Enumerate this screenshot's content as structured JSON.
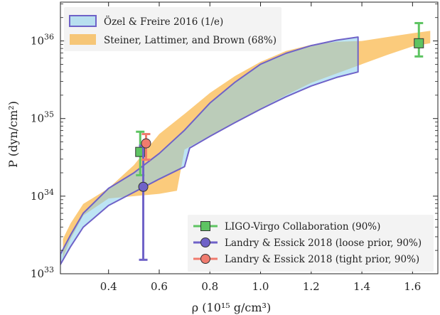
{
  "chart_data": {
    "type": "area",
    "xlabel": "ρ (10¹⁵ g/cm³)",
    "ylabel": "P (dyn/cm²)",
    "xlim": [
      0.21,
      1.7
    ],
    "ylim_log10": [
      33,
      36.5
    ],
    "yscale": "log",
    "x_ticks": [
      "0.4",
      "0.6",
      "0.8",
      "1.0",
      "1.2",
      "1.4",
      "1.6"
    ],
    "y_ticks": [
      {
        "base": "10",
        "exp": "33"
      },
      {
        "base": "10",
        "exp": "34"
      },
      {
        "base": "10",
        "exp": "35"
      },
      {
        "base": "10",
        "exp": "36"
      }
    ],
    "grid": false,
    "bands": [
      {
        "name": "Steiner, Lattimer, and Brown (68%)",
        "color": "#f9a825",
        "lower": [
          [
            0.22,
            33.2
          ],
          [
            0.25,
            33.45
          ],
          [
            0.3,
            33.75
          ],
          [
            0.4,
            33.97
          ],
          [
            0.5,
            34.0
          ],
          [
            0.6,
            34.03
          ],
          [
            0.67,
            34.07
          ],
          [
            0.7,
            34.6
          ],
          [
            0.8,
            34.78
          ],
          [
            0.9,
            34.95
          ],
          [
            1.0,
            35.13
          ],
          [
            1.1,
            35.3
          ],
          [
            1.2,
            35.46
          ],
          [
            1.3,
            35.58
          ],
          [
            1.4,
            35.7
          ],
          [
            1.5,
            35.82
          ],
          [
            1.6,
            35.93
          ],
          [
            1.67,
            35.97
          ]
        ],
        "upper": [
          [
            0.22,
            33.45
          ],
          [
            0.25,
            33.65
          ],
          [
            0.3,
            33.9
          ],
          [
            0.4,
            34.1
          ],
          [
            0.5,
            34.4
          ],
          [
            0.6,
            34.8
          ],
          [
            0.7,
            35.06
          ],
          [
            0.8,
            35.33
          ],
          [
            0.9,
            35.55
          ],
          [
            1.0,
            35.73
          ],
          [
            1.1,
            35.87
          ],
          [
            1.2,
            35.95
          ],
          [
            1.3,
            35.99
          ],
          [
            1.4,
            36.0
          ],
          [
            1.5,
            36.05
          ],
          [
            1.6,
            36.1
          ],
          [
            1.67,
            36.13
          ]
        ]
      },
      {
        "name": "Özel & Freire 2016 (1/e)",
        "color": "#87ceeb",
        "edge_color": "#6f62c8",
        "lower": [
          [
            0.21,
            33.12
          ],
          [
            0.25,
            33.35
          ],
          [
            0.3,
            33.6
          ],
          [
            0.4,
            33.88
          ],
          [
            0.5,
            34.05
          ],
          [
            0.6,
            34.22
          ],
          [
            0.7,
            34.38
          ],
          [
            0.72,
            34.62
          ],
          [
            0.8,
            34.77
          ],
          [
            0.9,
            34.95
          ],
          [
            1.0,
            35.12
          ],
          [
            1.1,
            35.28
          ],
          [
            1.2,
            35.42
          ],
          [
            1.3,
            35.53
          ],
          [
            1.385,
            35.6
          ]
        ],
        "upper": [
          [
            0.21,
            33.25
          ],
          [
            0.25,
            33.5
          ],
          [
            0.3,
            33.78
          ],
          [
            0.4,
            34.1
          ],
          [
            0.5,
            34.3
          ],
          [
            0.6,
            34.55
          ],
          [
            0.7,
            34.85
          ],
          [
            0.8,
            35.2
          ],
          [
            0.9,
            35.47
          ],
          [
            1.0,
            35.7
          ],
          [
            1.1,
            35.84
          ],
          [
            1.2,
            35.94
          ],
          [
            1.3,
            36.01
          ],
          [
            1.385,
            36.05
          ]
        ]
      }
    ],
    "points": [
      {
        "series": "LIGO-Virgo Collaboration (90%)",
        "x": 0.525,
        "y": 34.57,
        "y_low": 34.27,
        "y_high": 34.83,
        "color": "#5ec462",
        "marker": "square"
      },
      {
        "series": "LIGO-Virgo Collaboration (90%)",
        "x": 1.625,
        "y": 35.97,
        "y_low": 35.8,
        "y_high": 36.23,
        "color": "#5ec462",
        "marker": "square"
      },
      {
        "series": "Landry & Essick 2018 (loose prior, 90%)",
        "x": 0.537,
        "y": 34.12,
        "y_low": 33.18,
        "y_high": 34.65,
        "color": "#6f62c8",
        "marker": "circle"
      },
      {
        "series": "Landry & Essick 2018 (tight prior, 90%)",
        "x": 0.548,
        "y": 34.68,
        "y_low": 34.47,
        "y_high": 34.8,
        "color": "#f07b6e",
        "marker": "circle"
      }
    ],
    "legend_top": [
      {
        "label": "Özel & Freire 2016 (1/e)",
        "swatch": "band-blue"
      },
      {
        "label": "Steiner, Lattimer, and Brown (68%)",
        "swatch": "band-orange"
      }
    ],
    "legend_bottom": [
      {
        "label": "LIGO-Virgo Collaboration (90%)",
        "swatch": "square",
        "color": "#5ec462"
      },
      {
        "label": "Landry & Essick 2018 (loose prior, 90%)",
        "swatch": "circle",
        "color": "#6f62c8"
      },
      {
        "label": "Landry & Essick 2018 (tight prior, 90%)",
        "swatch": "circle",
        "color": "#f07b6e"
      }
    ],
    "legend_top_placement": "top-left",
    "legend_bottom_placement": "bottom-right"
  }
}
